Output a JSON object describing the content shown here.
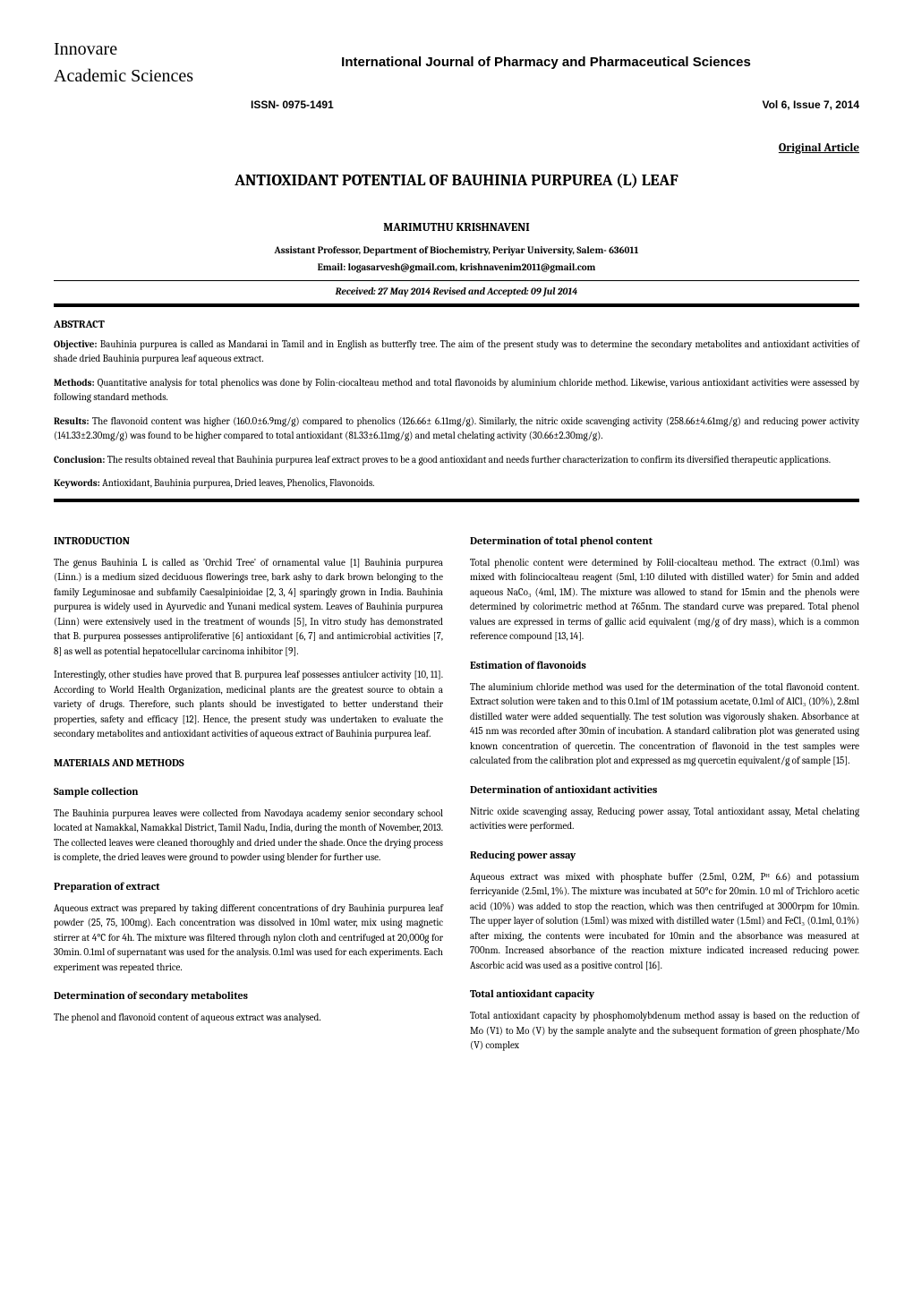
{
  "header": {
    "publisher_line1": "Innovare",
    "publisher_line2": "Academic Sciences",
    "journal_title": "International Journal of Pharmacy and Pharmaceutical Sciences",
    "issn": "ISSN- 0975-1491",
    "volume": "Vol 6, Issue 7, 2014"
  },
  "article_type": "Original Article",
  "title": "ANTIOXIDANT POTENTIAL OF BAUHINIA PURPUREA (L) LEAF",
  "author": "MARIMUTHU KRISHNAVENI",
  "affiliation": "Assistant Professor, Department of Biochemistry, Periyar University, Salem- 636011",
  "email": "Email: logasarvesh@gmail.com, krishnavenim2011@gmail.com",
  "dates": "Received: 27 May 2014 Revised and Accepted: 09 Jul  2014",
  "abstract": {
    "heading": "ABSTRACT",
    "objective_label": "Objective:",
    "objective": " Bauhinia purpurea is called as Mandarai in Tamil and in English as butterfly tree. The aim of the present study was to determine the secondary metabolites and antioxidant activities of shade dried Bauhinia purpurea leaf aqueous extract.",
    "methods_label": "Methods:",
    "methods": " Quantitative analysis for total phenolics was done by Folin-ciocalteau method and total flavonoids by aluminium chloride method. Likewise, various antioxidant activities were assessed by following standard methods.",
    "results_label": "Results:",
    "results": " The flavonoid content was higher (160.0±6.9mg/g) compared to phenolics (126.66± 6.11mg/g). Similarly, the nitric oxide scavenging activity (258.66±4.61mg/g) and reducing power activity (141.33±2.30mg/g) was found to be higher compared to total antioxidant (81.33±6.11mg/g) and metal chelating activity (30.66±2.30mg/g).",
    "conclusion_label": "Conclusion:",
    "conclusion": " The results obtained reveal that Bauhinia purpurea leaf extract proves to be a good antioxidant and needs further characterization to confirm its diversified therapeutic applications.",
    "keywords_label": "Keywords:",
    "keywords": " Antioxidant, Bauhinia purpurea, Dried leaves, Phenolics, Flavonoids."
  },
  "left_col": {
    "intro_heading": "INTRODUCTION",
    "intro_p1": "The genus Bauhinia L is called as 'Orchid Tree' of ornamental value [1] Bauhinia purpurea (Linn.) is a medium sized deciduous flowerings tree, bark ashy to dark brown belonging to the family Leguminosae and subfamily Caesalpinioidae [2, 3, 4] sparingly grown in India. Bauhinia purpurea is widely used in Ayurvedic and Yunani medical system. Leaves of Bauhinia purpurea (Linn) were extensively used in the treatment of wounds [5], In vitro study has demonstrated that B. purpurea possesses antiproliferative [6] antioxidant [6, 7] and antimicrobial activities [7, 8] as well as potential hepatocellular carcinoma inhibitor [9].",
    "intro_p2": " Interestingly, other studies have proved that B. purpurea leaf possesses antiulcer activity [10, 11]. According to World Health Organization, medicinal plants are the greatest source to obtain a variety of drugs. Therefore, such plants should be investigated to better understand their properties, safety and efficacy [12]. Hence, the present study was undertaken to evaluate the secondary metabolites and antioxidant activities of aqueous extract of Bauhinia purpurea leaf.",
    "materials_heading": "MATERIALS AND METHODS",
    "sample_heading": "Sample collection",
    "sample_p": "The Bauhinia purpurea leaves were collected from Navodaya academy senior secondary school located at Namakkal, Namakkal District, Tamil Nadu, India, during the month of November, 2013. The collected leaves were cleaned thoroughly and dried under the shade. Once the drying process is complete, the dried leaves were ground to powder using blender for further use.",
    "prep_heading": "Preparation of extract",
    "prep_p": "Aqueous extract was prepared by taking different concentrations of dry Bauhinia purpurea leaf powder (25, 75, 100mg). Each concentration was dissolved in 10ml water, mix using magnetic stirrer at 4°C for 4h. The mixture was filtered through nylon cloth and centrifuged at 20,000g for 30min. 0.1ml of supernatant was used for the analysis. 0.1ml was used for each experiments. Each experiment was repeated thrice.",
    "secondary_heading": "Determination of secondary metabolites",
    "secondary_p": "The phenol and flavonoid content of aqueous extract was analysed."
  },
  "right_col": {
    "phenol_heading": "Determination of total phenol content",
    "phenol_p": "Total phenolic content were determined by Folil-ciocalteau method. The extract (0.1ml) was mixed with folinciocalteau reagent (5ml, 1:10 diluted with distilled water) for 5min and added aqueous NaCo₃ (4ml, 1M). The mixture was allowed to stand for 15min and the phenols were determined by colorimetric method at 765nm. The standard curve was prepared. Total phenol values are expressed in terms of gallic acid equivalent (mg/g of dry mass), which is a common reference compound [13, 14].",
    "flav_heading": "Estimation of flavonoids",
    "flav_p": "The aluminium chloride method was used for the determination of the total flavonoid content. Extract solution were taken and to this 0.1ml of 1M potassium acetate, 0.1ml of AlCl₃ (10%), 2.8ml distilled water were added sequentially. The test solution was vigorously shaken. Absorbance at 415 nm was recorded after 30min of incubation. A standard calibration plot was generated using known concentration of quercetin. The concentration of flavonoid in the test samples were calculated from the calibration plot and expressed as mg quercetin equivalent/g of sample [15].",
    "antiox_heading": "Determination of antioxidant activities",
    "antiox_p": "Nitric oxide scavenging assay, Reducing power assay, Total antioxidant assay, Metal chelating activities were performed.",
    "reducing_heading": "Reducing power assay",
    "reducing_p": "Aqueous extract was mixed with phosphate buffer (2.5ml, 0.2M, Pᴴ 6.6) and potassium ferricyanide (2.5ml, 1%). The mixture was incubated at 50°c for 20min. 1.0 ml of Trichloro acetic acid (10%) was added to stop the reaction, which was then centrifuged at 3000rpm for 10min. The upper layer of solution (1.5ml) was mixed with distilled water (1.5ml) and FeCl₃ (0.1ml, 0.1%) after mixing, the contents were incubated for 10min and the absorbance was measured at 700nm. Increased absorbance of the reaction mixture indicated increased reducing power. Ascorbic acid was used as a positive control [16].",
    "total_heading": "Total antioxidant capacity",
    "total_p": "Total antioxidant capacity by phosphomolybdenum method assay is based on the reduction of Mo (V1) to Mo (V) by the sample analyte and the subsequent formation of green phosphate/Mo (V) complex"
  },
  "styles": {
    "page_bg": "#ffffff",
    "text_color": "#000000",
    "rule_color": "#000000",
    "body_font_size": 11,
    "heading_font_size": 12,
    "title_font_size": 18
  }
}
